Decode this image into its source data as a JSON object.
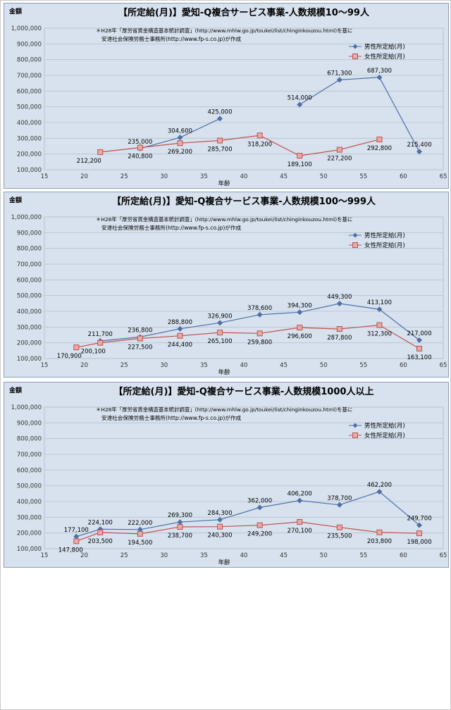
{
  "chart_data": [
    {
      "type": "line",
      "title": "【所定給(月)】愛知-Q複合サービス事業-人数規模10～99人",
      "ylabel": "金額",
      "xlabel": "年齢",
      "note_line1": "＊H28年「厚労省賃金構造基本統計調査」(http://www.mhlw.go.jp/toukei/list/chinginkouzou.html)を基に",
      "note_line2": "安達社会保険労務士事務所(http://www.fp-s.co.jp)が作成",
      "xlim": [
        15,
        65
      ],
      "ylim": [
        100000,
        1000000
      ],
      "x_ticks": [
        "15",
        "20",
        "25",
        "30",
        "35",
        "40",
        "45",
        "50",
        "55",
        "60",
        "65"
      ],
      "y_ticks": [
        "100,000",
        "200,000",
        "300,000",
        "400,000",
        "500,000",
        "600,000",
        "700,000",
        "800,000",
        "900,000",
        "1,000,000"
      ],
      "legend_position": "top-right",
      "series": [
        {
          "name": "男性所定給(月)",
          "color": "#4f6fa8",
          "marker": "diamond",
          "segments": [
            [
              {
                "x": 27,
                "y": 235000,
                "label": "235,000"
              },
              {
                "x": 32,
                "y": 304600,
                "label": "304,600"
              },
              {
                "x": 37,
                "y": 425000,
                "label": "425,000"
              }
            ],
            [
              {
                "x": 47,
                "y": 514000,
                "label": "514,000"
              },
              {
                "x": 52,
                "y": 671300,
                "label": "671,300"
              },
              {
                "x": 57,
                "y": 687300,
                "label": "687,300"
              },
              {
                "x": 62,
                "y": 215400,
                "label": "215,400"
              }
            ]
          ]
        },
        {
          "name": "女性所定給(月)",
          "color": "#c0504d",
          "marker": "square",
          "segments": [
            [
              {
                "x": 22,
                "y": 212200,
                "label": "212,200"
              },
              {
                "x": 27,
                "y": 240800,
                "label": "240,800"
              },
              {
                "x": 32,
                "y": 269200,
                "label": "269,200"
              },
              {
                "x": 37,
                "y": 285700,
                "label": "285,700"
              },
              {
                "x": 42,
                "y": 318200,
                "label": "318,200"
              },
              {
                "x": 47,
                "y": 189100,
                "label": "189,100"
              },
              {
                "x": 52,
                "y": 227200,
                "label": "227,200"
              },
              {
                "x": 57,
                "y": 292800,
                "label": "292,800"
              }
            ]
          ]
        }
      ]
    },
    {
      "type": "line",
      "title": "【所定給(月)】愛知-Q複合サービス事業-人数規模100～999人",
      "ylabel": "金額",
      "xlabel": "年齢",
      "note_line1": "＊H28年「厚労省賃金構造基本統計調査」(http://www.mhlw.go.jp/toukei/list/chinginkouzou.html)を基に",
      "note_line2": "安達社会保険労務士事務所(http://www.fp-s.co.jp)が作成",
      "xlim": [
        15,
        65
      ],
      "ylim": [
        100000,
        1000000
      ],
      "x_ticks": [
        "15",
        "20",
        "25",
        "30",
        "35",
        "40",
        "45",
        "50",
        "55",
        "60",
        "65"
      ],
      "y_ticks": [
        "100,000",
        "200,000",
        "300,000",
        "400,000",
        "500,000",
        "600,000",
        "700,000",
        "800,000",
        "900,000",
        "1,000,000"
      ],
      "legend_position": "top-right",
      "series": [
        {
          "name": "男性所定給(月)",
          "color": "#4f6fa8",
          "marker": "diamond",
          "segments": [
            [
              {
                "x": 22,
                "y": 211700,
                "label": "211,700"
              },
              {
                "x": 27,
                "y": 236800,
                "label": "236,800"
              },
              {
                "x": 32,
                "y": 288800,
                "label": "288,800"
              },
              {
                "x": 37,
                "y": 326900,
                "label": "326,900"
              },
              {
                "x": 42,
                "y": 378600,
                "label": "378,600"
              },
              {
                "x": 47,
                "y": 394300,
                "label": "394,300"
              },
              {
                "x": 52,
                "y": 449300,
                "label": "449,300"
              },
              {
                "x": 57,
                "y": 413100,
                "label": "413,100"
              },
              {
                "x": 62,
                "y": 217000,
                "label": "217,000"
              }
            ]
          ]
        },
        {
          "name": "女性所定給(月)",
          "color": "#c0504d",
          "marker": "square",
          "segments": [
            [
              {
                "x": 19,
                "y": 170900,
                "label": "170,900"
              },
              {
                "x": 22,
                "y": 200100,
                "label": "200,100"
              },
              {
                "x": 27,
                "y": 227500,
                "label": "227,500"
              },
              {
                "x": 32,
                "y": 244400,
                "label": "244,400"
              },
              {
                "x": 37,
                "y": 265100,
                "label": "265,100"
              },
              {
                "x": 42,
                "y": 259800,
                "label": "259,800"
              },
              {
                "x": 47,
                "y": 296600,
                "label": "296,600"
              },
              {
                "x": 52,
                "y": 287800,
                "label": "287,800"
              },
              {
                "x": 57,
                "y": 312300,
                "label": "312,300"
              },
              {
                "x": 62,
                "y": 163100,
                "label": "163,100"
              }
            ]
          ]
        }
      ]
    },
    {
      "type": "line",
      "title": "【所定給(月)】愛知-Q複合サービス事業-人数規模1000人以上",
      "ylabel": "金額",
      "xlabel": "年齢",
      "note_line1": "＊H28年「厚労省賃金構造基本統計調査」(http://www.mhlw.go.jp/toukei/list/chinginkouzou.html)を基に",
      "note_line2": "安達社会保険労務士事務所(http://www.fp-s.co.jp)が作成",
      "xlim": [
        15,
        65
      ],
      "ylim": [
        100000,
        1000000
      ],
      "x_ticks": [
        "15",
        "20",
        "25",
        "30",
        "35",
        "40",
        "45",
        "50",
        "55",
        "60",
        "65"
      ],
      "y_ticks": [
        "100,000",
        "200,000",
        "300,000",
        "400,000",
        "500,000",
        "600,000",
        "700,000",
        "800,000",
        "900,000",
        "1,000,000"
      ],
      "legend_position": "top-right",
      "series": [
        {
          "name": "男性所定給(月)",
          "color": "#4f6fa8",
          "marker": "diamond",
          "segments": [
            [
              {
                "x": 19,
                "y": 177100,
                "label": "177,100"
              },
              {
                "x": 22,
                "y": 224100,
                "label": "224,100"
              },
              {
                "x": 27,
                "y": 222000,
                "label": "222,000"
              },
              {
                "x": 32,
                "y": 269300,
                "label": "269,300"
              },
              {
                "x": 37,
                "y": 284300,
                "label": "284,300"
              },
              {
                "x": 42,
                "y": 362000,
                "label": "362,000"
              },
              {
                "x": 47,
                "y": 406200,
                "label": "406,200"
              },
              {
                "x": 52,
                "y": 378700,
                "label": "378,700"
              },
              {
                "x": 57,
                "y": 462200,
                "label": "462,200"
              },
              {
                "x": 62,
                "y": 249700,
                "label": "249,700"
              }
            ]
          ]
        },
        {
          "name": "女性所定給(月)",
          "color": "#c0504d",
          "marker": "square",
          "segments": [
            [
              {
                "x": 19,
                "y": 147800,
                "label": "147,800"
              },
              {
                "x": 22,
                "y": 203500,
                "label": "203,500"
              },
              {
                "x": 27,
                "y": 194500,
                "label": "194,500"
              },
              {
                "x": 32,
                "y": 238700,
                "label": "238,700"
              },
              {
                "x": 37,
                "y": 240300,
                "label": "240,300"
              },
              {
                "x": 42,
                "y": 249200,
                "label": "249,200"
              },
              {
                "x": 47,
                "y": 270100,
                "label": "270,100"
              },
              {
                "x": 52,
                "y": 235500,
                "label": "235,500"
              },
              {
                "x": 57,
                "y": 203800,
                "label": "203,800"
              },
              {
                "x": 62,
                "y": 198000,
                "label": "198,000"
              }
            ]
          ]
        }
      ]
    }
  ]
}
